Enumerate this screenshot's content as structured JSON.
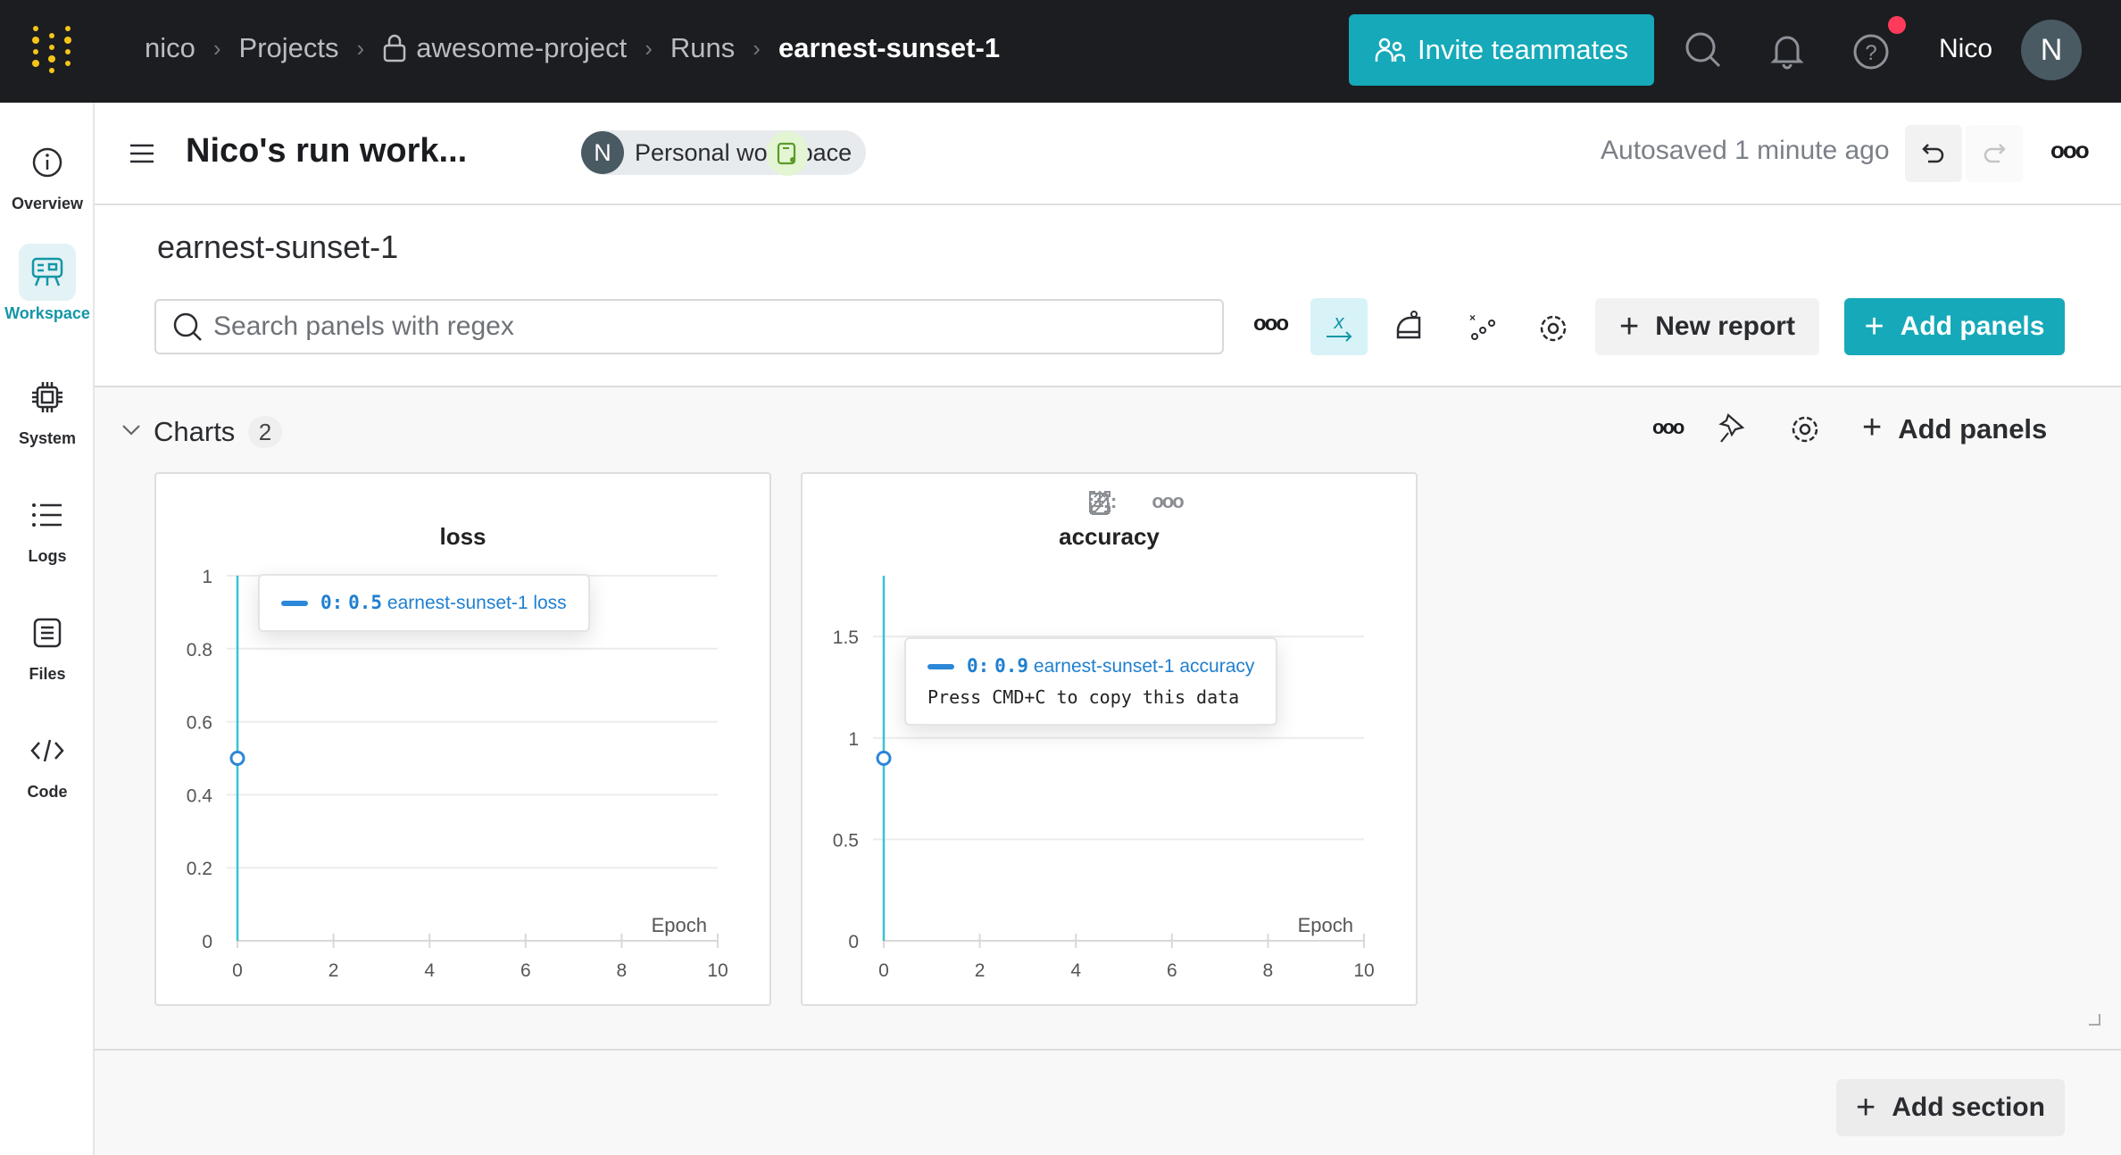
{
  "topbar": {
    "breadcrumb": [
      "nico",
      "Projects",
      "awesome-project",
      "Runs",
      "earnest-sunset-1"
    ],
    "invite_label": "Invite teammates",
    "user_name": "Nico",
    "avatar_initial": "N",
    "accent": "#16a9b9",
    "notification_color": "#ff3b5c"
  },
  "sidebar": {
    "items": [
      {
        "label": "Overview",
        "icon": "info-icon"
      },
      {
        "label": "Workspace",
        "icon": "workspace-icon",
        "active": true
      },
      {
        "label": "System",
        "icon": "chip-icon"
      },
      {
        "label": "Logs",
        "icon": "list-icon"
      },
      {
        "label": "Files",
        "icon": "file-icon"
      },
      {
        "label": "Code",
        "icon": "code-icon"
      }
    ]
  },
  "header": {
    "title": "Nico's run work...",
    "workspace_initial": "N",
    "workspace_label": "Personal workspace",
    "autosave": "Autosaved 1 minute ago"
  },
  "run_title": "earnest-sunset-1",
  "toolbar": {
    "search_placeholder": "Search panels with regex",
    "new_report": "New report",
    "add_panels": "Add panels"
  },
  "section": {
    "title": "Charts",
    "count": "2",
    "add_panels": "Add panels"
  },
  "add_section": "Add section",
  "chart_data": [
    {
      "type": "line",
      "title": "loss",
      "xlabel": "Epoch",
      "xlim": [
        0,
        10
      ],
      "ylim": [
        0,
        1
      ],
      "xticks": [
        0,
        2,
        4,
        6,
        8,
        10
      ],
      "yticks": [
        0,
        0.2,
        0.4,
        0.6,
        0.8,
        1
      ],
      "ytick_labels": [
        "0",
        "0.2",
        "0.4",
        "0.6",
        "0.8",
        "1"
      ],
      "series": [
        {
          "name": "earnest-sunset-1 loss",
          "x": [
            0
          ],
          "y": [
            0.5
          ]
        }
      ],
      "tooltip": {
        "step": "0:",
        "value": "0.5",
        "label": "earnest-sunset-1 loss"
      },
      "color": "#2b87d8"
    },
    {
      "type": "line",
      "title": "accuracy",
      "xlabel": "Epoch",
      "xlim": [
        0,
        10
      ],
      "ylim": [
        0,
        1.8
      ],
      "xticks": [
        0,
        2,
        4,
        6,
        8,
        10
      ],
      "yticks": [
        0,
        0.5,
        1,
        1.5
      ],
      "ytick_labels": [
        "0",
        "0.5",
        "1",
        "1.5"
      ],
      "series": [
        {
          "name": "earnest-sunset-1 accuracy",
          "x": [
            0
          ],
          "y": [
            0.9
          ]
        }
      ],
      "tooltip": {
        "step": "0:",
        "value": "0.9",
        "label": "earnest-sunset-1 accuracy",
        "copy_hint": "Press CMD+C to copy this data"
      },
      "color": "#2b87d8"
    }
  ]
}
